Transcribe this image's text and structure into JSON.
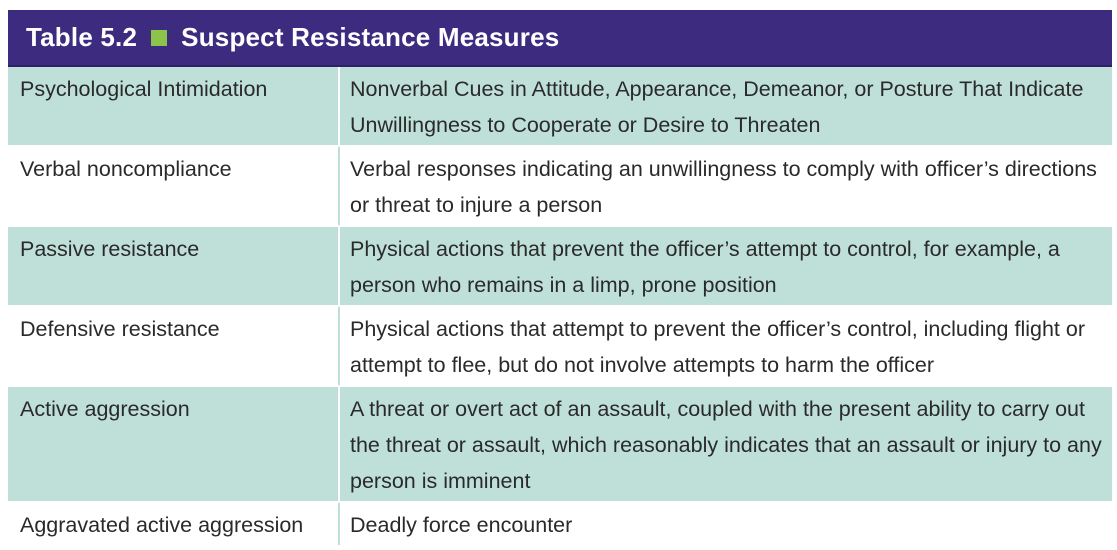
{
  "table": {
    "label": "Table 5.2",
    "title": "Suspect Resistance Measures",
    "colors": {
      "header_bg": "#3d2b80",
      "marker": "#8cc34a",
      "row_shade": "#bfe0d8"
    },
    "rows": [
      {
        "term": "Psychological Intimidation",
        "description": "Nonverbal Cues in Attitude, Appearance, Demeanor, or Posture That Indicate Unwillingness to Cooperate or Desire to Threaten"
      },
      {
        "term": "Verbal noncompliance",
        "description": "Verbal responses indicating an unwillingness to comply with officer’s directions or threat to injure a person"
      },
      {
        "term": "Passive resistance",
        "description": "Physical actions that prevent the officer’s attempt to control, for example, a person who remains in a limp, prone position"
      },
      {
        "term": "Defensive resistance",
        "description": "Physical actions that attempt to prevent the officer’s control, including flight or attempt to flee, but do not involve attempts to harm the officer"
      },
      {
        "term": "Active aggression",
        "description": "A threat or overt act of an assault, coupled with the present ability to carry out the threat or assault, which reasonably indicates that an assault or injury to any person is imminent"
      },
      {
        "term": "Aggravated active aggression",
        "description": "Deadly force encounter"
      }
    ]
  }
}
